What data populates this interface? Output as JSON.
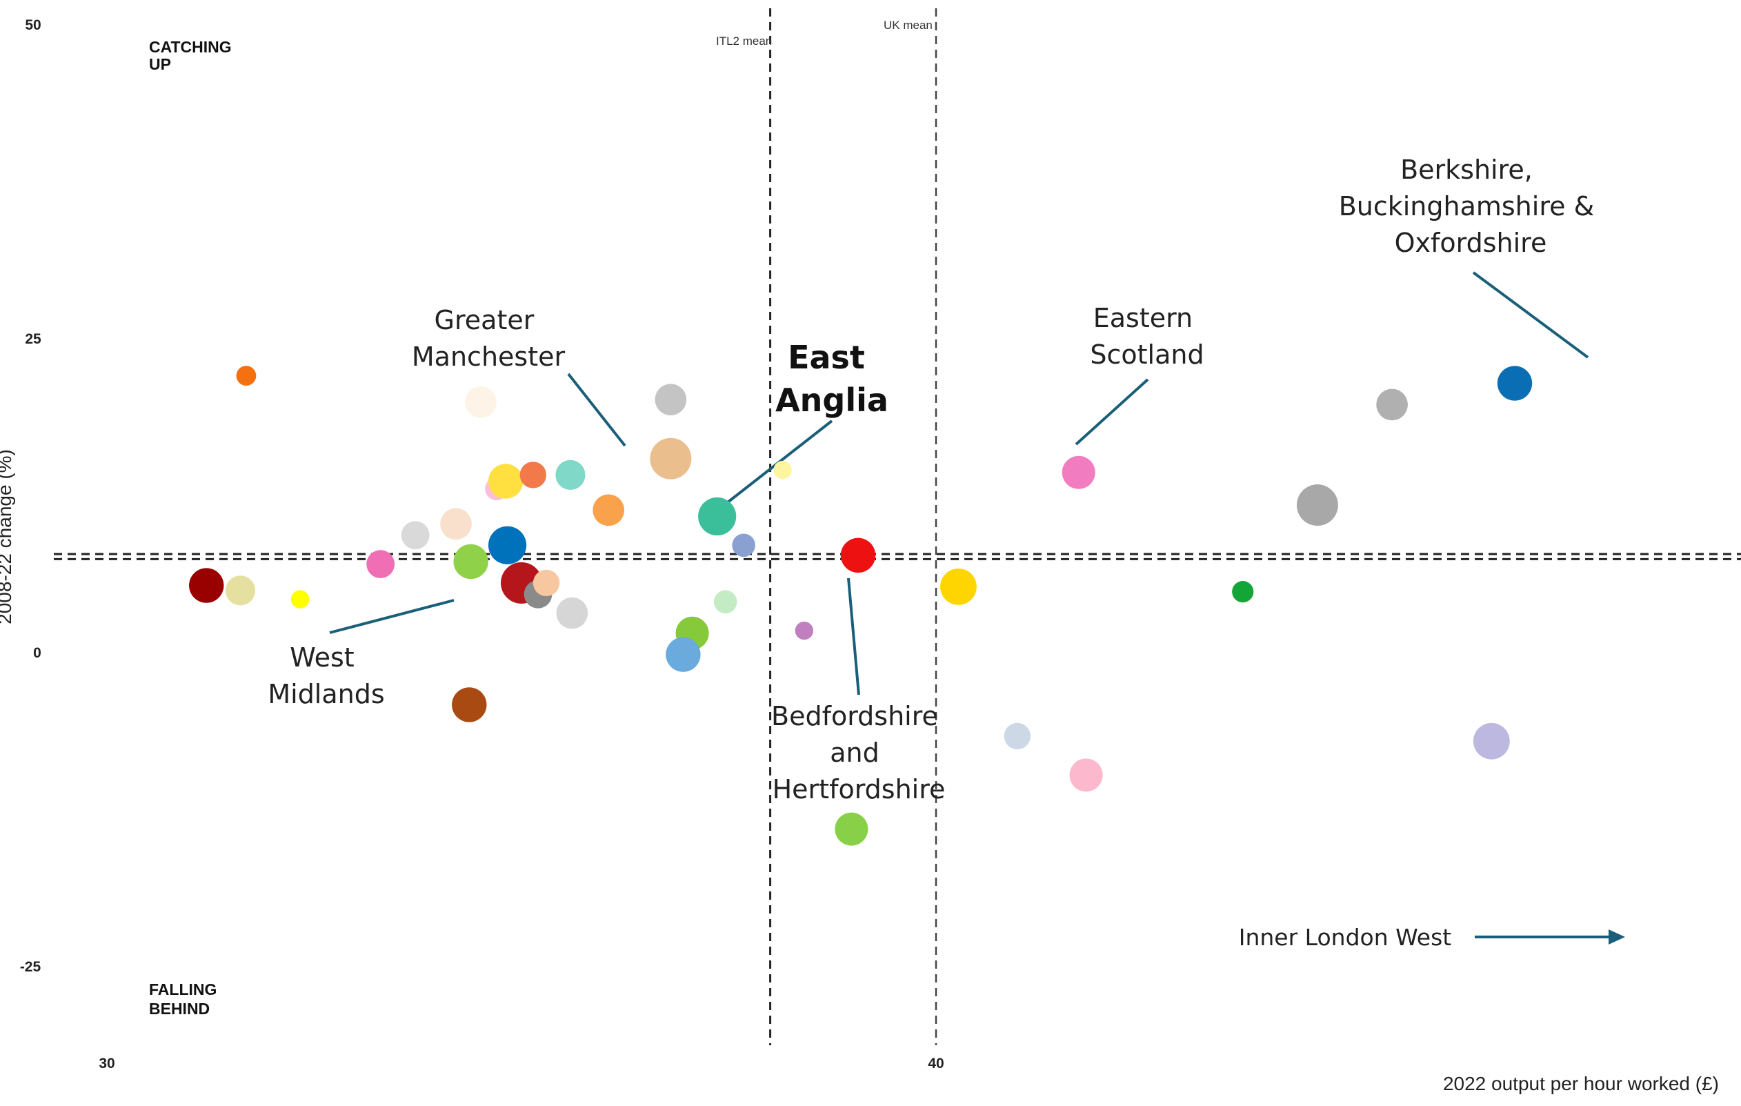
{
  "chart_data": {
    "type": "scatter",
    "title": "",
    "xlabel": "2022 output per hour worked (£)",
    "ylabel": "2008-22 change (%)",
    "xlim": [
      29.6,
      49.3
    ],
    "ylim": [
      -31.4,
      51.0
    ],
    "x_ticks": [
      {
        "value": 30,
        "label": "30"
      },
      {
        "value": 40,
        "label": "40"
      }
    ],
    "y_ticks": [
      {
        "value": 50,
        "label": "50"
      },
      {
        "value": 25,
        "label": "25"
      },
      {
        "value": 0,
        "label": "0"
      },
      {
        "value": -25,
        "label": "-25"
      }
    ],
    "grid": false,
    "quadrant_labels": [
      {
        "name": "catching-up",
        "lines": [
          "CATCHING",
          "UP"
        ]
      },
      {
        "name": "falling-behind",
        "lines": [
          "FALLING",
          "BEHIND"
        ]
      }
    ],
    "reference_lines": [
      {
        "name": "itl2-mean-x",
        "orientation": "vertical",
        "x": 38.0,
        "label": "ITL2 mean"
      },
      {
        "name": "uk-mean-x",
        "orientation": "vertical",
        "x": 40.0,
        "label": "UK mean"
      },
      {
        "name": "itl2-mean-y",
        "orientation": "horizontal",
        "y": 7.8,
        "label": ""
      },
      {
        "name": "uk-mean-y",
        "orientation": "horizontal",
        "y": 7.4,
        "label": ""
      }
    ],
    "points": [
      {
        "x": 31.68,
        "y": 22.0,
        "size": 0.6,
        "color": "#f57010"
      },
      {
        "x": 31.2,
        "y": 5.3,
        "size": 1.05,
        "color": "#990000"
      },
      {
        "x": 31.61,
        "y": 4.9,
        "size": 0.9,
        "color": "#e6e0a0"
      },
      {
        "x": 32.33,
        "y": 4.2,
        "size": 0.55,
        "color": "#ffff00"
      },
      {
        "x": 33.3,
        "y": 7.0,
        "size": 0.85,
        "color": "#f06eb4"
      },
      {
        "x": 33.72,
        "y": 9.3,
        "size": 0.85,
        "color": "#d9d9d9"
      },
      {
        "x": 34.21,
        "y": 10.2,
        "size": 0.95,
        "color": "#f8e0cc"
      },
      {
        "x": 34.51,
        "y": 19.9,
        "size": 0.95,
        "color": "#fdf3e6"
      },
      {
        "x": 34.7,
        "y": 13.0,
        "size": 0.7,
        "color": "#f9c0d8"
      },
      {
        "x": 34.81,
        "y": 13.6,
        "size": 1.05,
        "color": "#ffe040"
      },
      {
        "x": 35.14,
        "y": 14.1,
        "size": 0.8,
        "color": "#f27a4a"
      },
      {
        "x": 35.59,
        "y": 14.1,
        "size": 0.9,
        "color": "#7fd8c8"
      },
      {
        "x": 36.05,
        "y": 11.3,
        "size": 0.95,
        "color": "#f9a24b"
      },
      {
        "x": 34.39,
        "y": 7.2,
        "size": 1.05,
        "color": "#8fd24a"
      },
      {
        "x": 34.83,
        "y": 8.5,
        "size": 1.15,
        "color": "#0072bb"
      },
      {
        "x": 35.0,
        "y": 5.5,
        "size": 1.25,
        "color": "#b5161c"
      },
      {
        "x": 35.2,
        "y": 4.6,
        "size": 0.85,
        "color": "#8a8a8a"
      },
      {
        "x": 35.3,
        "y": 5.5,
        "size": 0.8,
        "color": "#f7c8a0"
      },
      {
        "x": 35.61,
        "y": 3.1,
        "size": 0.95,
        "color": "#d6d6d6"
      },
      {
        "x": 34.37,
        "y": -4.2,
        "size": 1.05,
        "color": "#a84a12"
      },
      {
        "x": 36.8,
        "y": 20.1,
        "size": 0.95,
        "color": "#c4c4c4"
      },
      {
        "x": 36.8,
        "y": 15.4,
        "size": 1.25,
        "color": "#ebbe8e"
      },
      {
        "x": 37.06,
        "y": 1.5,
        "size": 1.0,
        "color": "#86c93a"
      },
      {
        "x": 36.95,
        "y": -0.2,
        "size": 1.05,
        "color": "#6aaadc"
      },
      {
        "x": 37.46,
        "y": 4.0,
        "size": 0.7,
        "color": "#c4ecc4"
      },
      {
        "x": 37.36,
        "y": 10.8,
        "size": 1.15,
        "color": "#3bbf9a"
      },
      {
        "x": 37.68,
        "y": 8.5,
        "size": 0.7,
        "color": "#8aa0d0"
      },
      {
        "x": 38.15,
        "y": 14.5,
        "size": 0.55,
        "color": "#fff5a0"
      },
      {
        "x": 38.41,
        "y": 1.7,
        "size": 0.55,
        "color": "#c080c0"
      },
      {
        "x": 39.06,
        "y": 7.7,
        "size": 1.05,
        "color": "#ee1111"
      },
      {
        "x": 38.98,
        "y": -14.1,
        "size": 1.0,
        "color": "#88d048"
      },
      {
        "x": 40.27,
        "y": 5.2,
        "size": 1.1,
        "color": "#ffd500"
      },
      {
        "x": 40.98,
        "y": -6.7,
        "size": 0.8,
        "color": "#cdd8e6"
      },
      {
        "x": 41.72,
        "y": 14.3,
        "size": 1.0,
        "color": "#f27cc0"
      },
      {
        "x": 41.81,
        "y": -9.8,
        "size": 1.0,
        "color": "#fcb8cc"
      },
      {
        "x": 43.7,
        "y": 4.8,
        "size": 0.65,
        "color": "#13a538"
      },
      {
        "x": 44.6,
        "y": 11.7,
        "size": 1.25,
        "color": "#a8a8a8"
      },
      {
        "x": 45.5,
        "y": 19.7,
        "size": 0.95,
        "color": "#b0b0b0"
      },
      {
        "x": 46.7,
        "y": -7.1,
        "size": 1.1,
        "color": "#bcb8e0"
      },
      {
        "x": 46.98,
        "y": 21.4,
        "size": 1.05,
        "color": "#0a6eb5"
      }
    ],
    "annotations": [
      {
        "name": "berkshire",
        "lines": [
          "Berkshire,",
          "Buckinghamshire &",
          "Oxfordshire"
        ],
        "bold": false
      },
      {
        "name": "eastern-scotland",
        "lines": [
          "Eastern",
          "Scotland"
        ],
        "bold": false
      },
      {
        "name": "greater-manchester",
        "lines": [
          "Greater",
          "Manchester"
        ],
        "bold": false
      },
      {
        "name": "east-anglia",
        "lines": [
          "East",
          "Anglia"
        ],
        "bold": true
      },
      {
        "name": "west-midlands",
        "lines": [
          "West",
          "Midlands"
        ],
        "bold": false
      },
      {
        "name": "bedfordshire",
        "lines": [
          "Bedfordshire",
          "and",
          "Hertfordshire"
        ],
        "bold": false
      },
      {
        "name": "inner-london-west",
        "lines": [
          "Inner London West"
        ],
        "bold": false
      }
    ],
    "colors": {
      "annotation_line": "#1a5f7a",
      "reference_line": "#222222"
    }
  }
}
